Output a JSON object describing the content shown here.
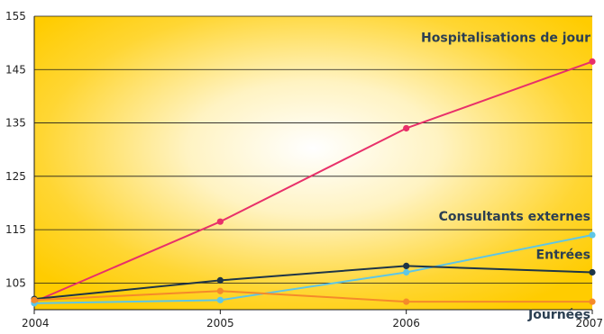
{
  "chart_data": {
    "type": "line",
    "x": [
      "2004",
      "2005",
      "2006",
      "2007"
    ],
    "ylim": [
      100,
      155
    ],
    "y_ticks": [
      105,
      115,
      125,
      135,
      145,
      155
    ],
    "grid": "horizontal",
    "series": [
      {
        "name": "Hospitalisations de jour",
        "color": "#e8306a",
        "values": [
          101.5,
          116.5,
          134,
          146.5
        ]
      },
      {
        "name": "Consultants externes",
        "color": "#5ec6e6",
        "values": [
          101.2,
          101.8,
          107,
          114
        ]
      },
      {
        "name": "Entrées",
        "color": "#1e3547",
        "values": [
          102,
          105.5,
          108.2,
          107
        ]
      },
      {
        "name": "Journées",
        "color": "#f58a2a",
        "values": [
          101.8,
          103.5,
          101.5,
          101.5
        ]
      }
    ],
    "colors": {
      "background_center": "#ffffff",
      "background_edge": "#ffcc00",
      "grid": "#1a1a1a"
    }
  }
}
